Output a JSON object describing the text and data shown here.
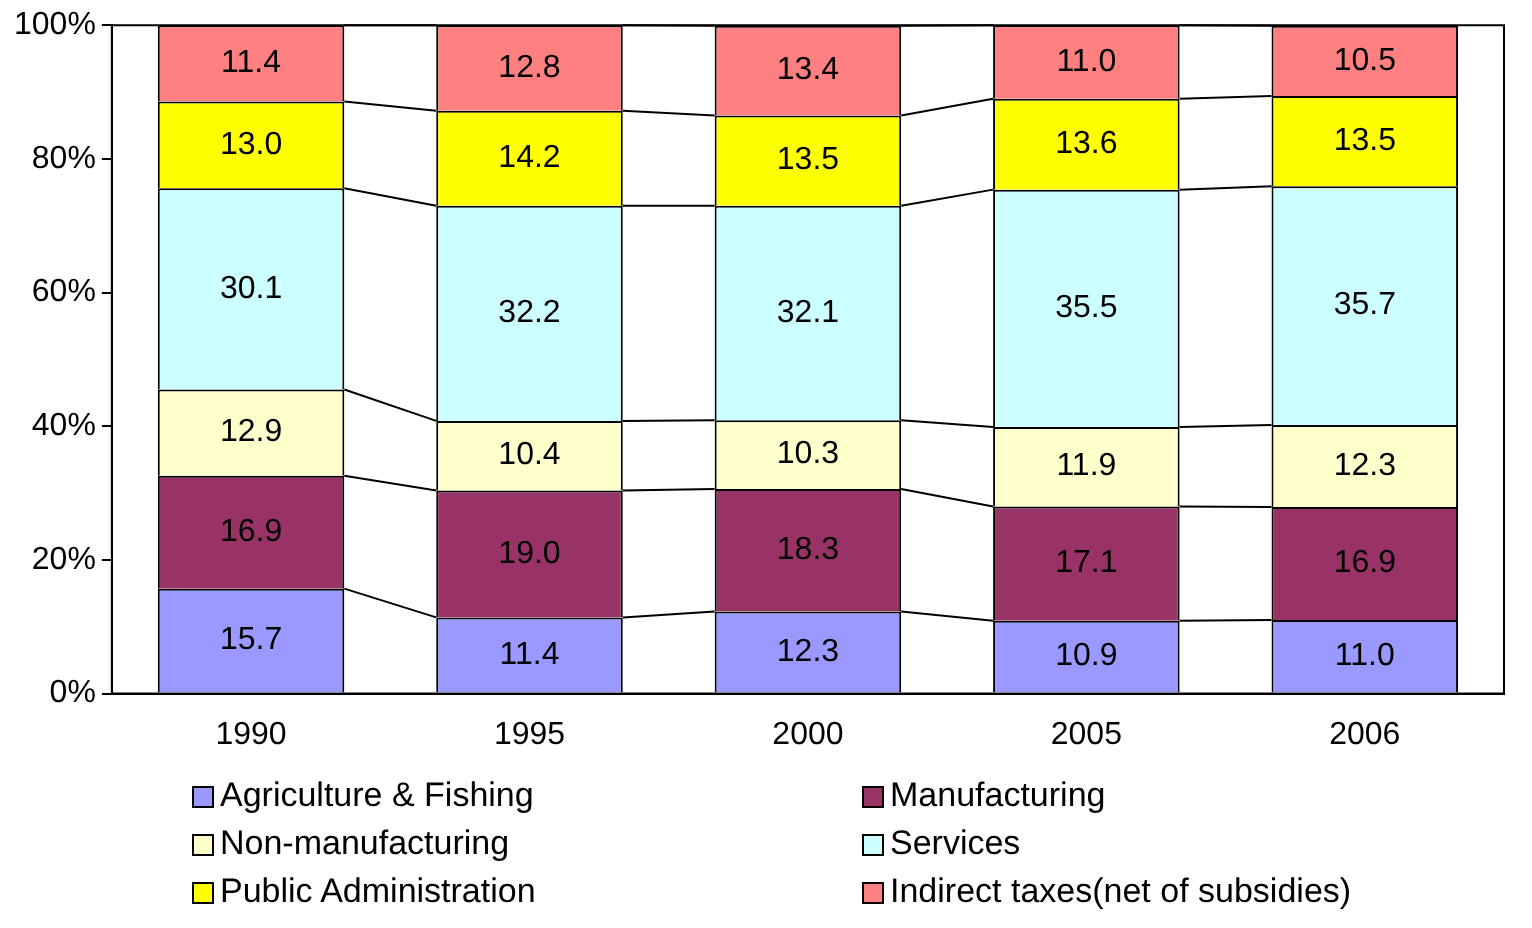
{
  "chart_data": {
    "type": "bar",
    "stacked": true,
    "categories": [
      "1990",
      "1995",
      "2000",
      "2005",
      "2006"
    ],
    "series": [
      {
        "name": "Agriculture & Fishing",
        "color": "#9999ff",
        "values": [
          15.7,
          11.4,
          12.3,
          10.9,
          11.0
        ],
        "value_labels": [
          "15.7",
          "11.4",
          "12.3",
          "10.9",
          "11.0"
        ]
      },
      {
        "name": "Manufacturing",
        "color": "#993366",
        "values": [
          16.9,
          19.0,
          18.3,
          17.1,
          16.9
        ],
        "value_labels": [
          "16.9",
          "19.0",
          "18.3",
          "17.1",
          "16.9"
        ]
      },
      {
        "name": "Non-manufacturing",
        "color": "#ffffcc",
        "values": [
          12.9,
          10.4,
          10.3,
          11.9,
          12.3
        ],
        "value_labels": [
          "12.9",
          "10.4",
          "10.3",
          "11.9",
          "12.3"
        ]
      },
      {
        "name": "Services",
        "color": "#ccffff",
        "values": [
          30.1,
          32.2,
          32.1,
          35.5,
          35.7
        ],
        "value_labels": [
          "30.1",
          "32.2",
          "32.1",
          "35.5",
          "35.7"
        ]
      },
      {
        "name": "Public Administration",
        "color": "#ffff00",
        "values": [
          13.0,
          14.2,
          13.5,
          13.6,
          13.5
        ],
        "value_labels": [
          "13.0",
          "14.2",
          "13.5",
          "13.6",
          "13.5"
        ]
      },
      {
        "name": "Indirect taxes(net of subsidies)",
        "color": "#ff8080",
        "values": [
          11.4,
          12.8,
          13.4,
          11.0,
          10.5
        ],
        "value_labels": [
          "11.4",
          "12.8",
          "13.4",
          "11.0",
          "10.5"
        ]
      }
    ],
    "ylim": [
      0,
      100
    ],
    "yticks": [
      {
        "value": 0,
        "label": "0%"
      },
      {
        "value": 20,
        "label": "20%"
      },
      {
        "value": 40,
        "label": "40%"
      },
      {
        "value": 60,
        "label": "60%"
      },
      {
        "value": 80,
        "label": "80%"
      },
      {
        "value": 100,
        "label": "100%"
      }
    ],
    "grid": false,
    "legend": "bottom"
  }
}
